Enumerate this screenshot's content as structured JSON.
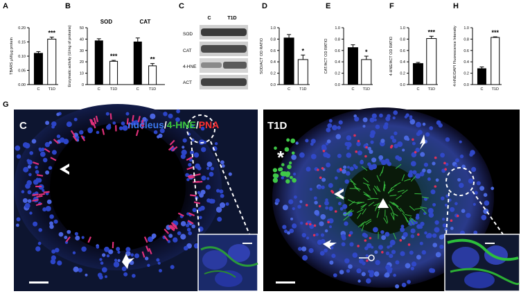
{
  "panels": {
    "A": "A",
    "B": "B",
    "C": "C",
    "D": "D",
    "E": "E",
    "F": "F",
    "G": "G",
    "H": "H"
  },
  "chart_data": [
    {
      "id": "A",
      "type": "bar",
      "categories": [
        "C",
        "T1D"
      ],
      "values": [
        0.11,
        0.16
      ],
      "errors": [
        0.006,
        0.007
      ],
      "significance": "***",
      "ylabel": "TBARS µM/µg protein",
      "ylim": [
        0,
        0.2
      ],
      "yticks": [
        "0.00",
        "0.05",
        "0.10",
        "0.15",
        "0.20"
      ],
      "colors": [
        "#000000",
        "#ffffff"
      ]
    },
    {
      "id": "B",
      "type": "bar",
      "groups": [
        "SOD",
        "CAT"
      ],
      "categories": [
        "C",
        "T1D",
        "C",
        "T1D"
      ],
      "values": [
        38.5,
        20.5,
        37.5,
        16.5
      ],
      "errors": [
        1.8,
        0.8,
        3.5,
        2.0
      ],
      "significance": [
        "***",
        "**"
      ],
      "ylabel": "Enzymatic activity (U/mg of proteins)",
      "ylim": [
        0,
        50
      ],
      "yticks": [
        "0",
        "10",
        "20",
        "30",
        "40",
        "50"
      ],
      "colors": [
        "#000000",
        "#ffffff"
      ]
    },
    {
      "id": "D",
      "type": "bar",
      "categories": [
        "C",
        "T1D"
      ],
      "values": [
        0.82,
        0.44
      ],
      "errors": [
        0.06,
        0.08
      ],
      "significance": "*",
      "ylabel": "SOD/ACT OD RATIO",
      "ylim": [
        0,
        1.0
      ],
      "yticks": [
        "0.0",
        "0.2",
        "0.4",
        "0.6",
        "0.8",
        "1.0"
      ],
      "colors": [
        "#000000",
        "#ffffff"
      ]
    },
    {
      "id": "E",
      "type": "bar",
      "categories": [
        "C",
        "T1D"
      ],
      "values": [
        0.65,
        0.44
      ],
      "errors": [
        0.05,
        0.06
      ],
      "significance": "*",
      "ylabel": "CAT/ACT OD RATIO",
      "ylim": [
        0,
        1.0
      ],
      "yticks": [
        "0.0",
        "0.2",
        "0.4",
        "0.6",
        "0.8",
        "1.0"
      ],
      "colors": [
        "#000000",
        "#ffffff"
      ]
    },
    {
      "id": "F",
      "type": "bar",
      "categories": [
        "C",
        "T1D"
      ],
      "values": [
        0.37,
        0.81
      ],
      "errors": [
        0.02,
        0.04
      ],
      "significance": "***",
      "ylabel": "4-HNE/ACT OD RATIO",
      "ylim": [
        0,
        1.0
      ],
      "yticks": [
        "0.0",
        "0.2",
        "0.4",
        "0.6",
        "0.8",
        "1.0"
      ],
      "colors": [
        "#000000",
        "#ffffff"
      ]
    },
    {
      "id": "H",
      "type": "bar",
      "categories": [
        "C",
        "T1D"
      ],
      "values": [
        0.28,
        0.83
      ],
      "errors": [
        0.03,
        0.01
      ],
      "significance": "***",
      "ylabel": "4-HNE/DAPI Fluorescence Intensity",
      "ylim": [
        0,
        1.0
      ],
      "yticks": [
        "0.0",
        "0.2",
        "0.4",
        "0.6",
        "0.8",
        "1.0"
      ],
      "colors": [
        "#000000",
        "#ffffff"
      ]
    }
  ],
  "western": {
    "headers": [
      "C",
      "T1D"
    ],
    "rows": [
      "SOD",
      "CAT",
      "4-HNE",
      "ACT"
    ]
  },
  "micro": {
    "left_label": "C",
    "right_label": "T1D",
    "stain_nucleus": "nucleus",
    "stain_sep1": "/",
    "stain_hne": "4-HNE",
    "stain_sep2": "/",
    "stain_pna": "PNA",
    "asterisk": "*"
  }
}
